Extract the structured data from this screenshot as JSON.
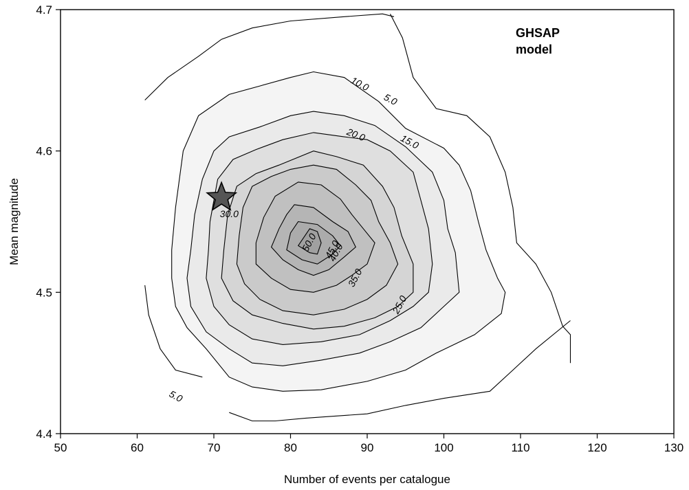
{
  "chart_data": {
    "type": "contour",
    "title": "",
    "annotation": "GHSAP\nmodel",
    "xlabel": "Number of events per catalogue",
    "ylabel": "Mean magnitude",
    "xlim": [
      50,
      130
    ],
    "ylim": [
      4.4,
      4.7
    ],
    "x_ticks": [
      50,
      60,
      70,
      80,
      90,
      100,
      110,
      120,
      130
    ],
    "y_ticks": [
      4.4,
      4.5,
      4.6,
      4.7
    ],
    "grid": false,
    "colors": {
      "fill_base": "#8a8a8a",
      "fill_light": "#f4f4f4",
      "line": "#000000",
      "marker": "#555555"
    },
    "marker": {
      "shape": "star",
      "x": 71,
      "y": 4.567
    },
    "levels": [
      {
        "value": "5.0",
        "filled": false,
        "segments": [
          [
            [
              61,
              4.636
            ],
            [
              64,
              4.652
            ],
            [
              68,
              4.667
            ],
            [
              71,
              4.679
            ],
            [
              75,
              4.687
            ],
            [
              80,
              4.692
            ],
            [
              87,
              4.695
            ],
            [
              92,
              4.697
            ],
            [
              93.5,
              4.695
            ]
          ],
          [
            [
              93,
              4.697
            ],
            [
              94.6,
              4.68
            ],
            [
              96,
              4.652
            ],
            [
              99,
              4.63
            ],
            [
              103,
              4.625
            ],
            [
              106,
              4.61
            ],
            [
              108,
              4.585
            ],
            [
              109,
              4.56
            ],
            [
              109.5,
              4.535
            ],
            [
              112,
              4.52
            ],
            [
              114,
              4.5
            ],
            [
              115.5,
              4.476
            ],
            [
              116.5,
              4.47
            ],
            [
              116.5,
              4.45
            ]
          ],
          [
            [
              116.5,
              4.48
            ],
            [
              112,
              4.46
            ],
            [
              109,
              4.445
            ],
            [
              106,
              4.43
            ],
            [
              100,
              4.425
            ],
            [
              95,
              4.42
            ],
            [
              90,
              4.414
            ],
            [
              82,
              4.411
            ],
            [
              78,
              4.409
            ],
            [
              75,
              4.409
            ],
            [
              72,
              4.415
            ]
          ],
          [
            [
              61,
              4.505
            ],
            [
              61.5,
              4.484
            ],
            [
              63,
              4.46
            ],
            [
              65,
              4.445
            ],
            [
              68.5,
              4.44
            ]
          ]
        ],
        "labels": [
          {
            "x": 93,
            "y": 4.636,
            "angle": 28
          },
          {
            "x": 65,
            "y": 4.426,
            "angle": 28
          }
        ]
      },
      {
        "value": "10.0",
        "filled": true,
        "points": [
          [
            83,
            4.656
          ],
          [
            87,
            4.652
          ],
          [
            91.5,
            4.635
          ],
          [
            95,
            4.616
          ],
          [
            100,
            4.602
          ],
          [
            102,
            4.59
          ],
          [
            103.5,
            4.572
          ],
          [
            104.5,
            4.55
          ],
          [
            105.5,
            4.53
          ],
          [
            107,
            4.51
          ],
          [
            108,
            4.5
          ],
          [
            107.5,
            4.485
          ],
          [
            104,
            4.47
          ],
          [
            99,
            4.457
          ],
          [
            95,
            4.445
          ],
          [
            90,
            4.437
          ],
          [
            84,
            4.431
          ],
          [
            79,
            4.43
          ],
          [
            75,
            4.433
          ],
          [
            72,
            4.44
          ],
          [
            69,
            4.46
          ],
          [
            66.5,
            4.475
          ],
          [
            65,
            4.49
          ],
          [
            64.5,
            4.51
          ],
          [
            64.5,
            4.53
          ],
          [
            65,
            4.56
          ],
          [
            66,
            4.6
          ],
          [
            68,
            4.625
          ],
          [
            72,
            4.64
          ],
          [
            76,
            4.646
          ],
          [
            80,
            4.652
          ]
        ],
        "labels": [
          {
            "x": 89,
            "y": 4.647,
            "angle": 28
          }
        ]
      },
      {
        "value": "15.0",
        "filled": true,
        "points": [
          [
            83,
            4.628
          ],
          [
            87,
            4.625
          ],
          [
            91,
            4.618
          ],
          [
            95,
            4.603
          ],
          [
            98.5,
            4.585
          ],
          [
            100,
            4.565
          ],
          [
            100.5,
            4.545
          ],
          [
            101.5,
            4.528
          ],
          [
            102,
            4.5
          ],
          [
            100,
            4.49
          ],
          [
            97,
            4.475
          ],
          [
            93,
            4.465
          ],
          [
            89,
            4.457
          ],
          [
            84,
            4.452
          ],
          [
            79,
            4.448
          ],
          [
            75,
            4.45
          ],
          [
            72,
            4.46
          ],
          [
            69,
            4.472
          ],
          [
            67,
            4.49
          ],
          [
            66.5,
            4.51
          ],
          [
            67,
            4.53
          ],
          [
            67.5,
            4.555
          ],
          [
            68.5,
            4.58
          ],
          [
            70,
            4.6
          ],
          [
            72,
            4.61
          ],
          [
            76,
            4.617
          ],
          [
            80,
            4.625
          ]
        ],
        "labels": [
          {
            "x": 95.5,
            "y": 4.606,
            "angle": 28
          }
        ]
      },
      {
        "value": "20.0",
        "filled": true,
        "points": [
          [
            83,
            4.613
          ],
          [
            87,
            4.61
          ],
          [
            90,
            4.608
          ],
          [
            93,
            4.6
          ],
          [
            96,
            4.585
          ],
          [
            97,
            4.565
          ],
          [
            98,
            4.545
          ],
          [
            98.5,
            4.52
          ],
          [
            98,
            4.5
          ],
          [
            96,
            4.49
          ],
          [
            93,
            4.48
          ],
          [
            89,
            4.47
          ],
          [
            84,
            4.465
          ],
          [
            79,
            4.463
          ],
          [
            75,
            4.467
          ],
          [
            72,
            4.477
          ],
          [
            70,
            4.49
          ],
          [
            69,
            4.51
          ],
          [
            69.3,
            4.53
          ],
          [
            69.5,
            4.55
          ],
          [
            70.5,
            4.58
          ],
          [
            72.5,
            4.594
          ],
          [
            75.5,
            4.601
          ],
          [
            79,
            4.608
          ]
        ],
        "labels": [
          {
            "x": 88.5,
            "y": 4.611,
            "angle": 22
          }
        ]
      },
      {
        "value": "25.0",
        "filled": true,
        "points": [
          [
            83,
            4.6
          ],
          [
            86,
            4.596
          ],
          [
            89.5,
            4.59
          ],
          [
            92,
            4.575
          ],
          [
            93.5,
            4.56
          ],
          [
            94.5,
            4.54
          ],
          [
            96,
            4.52
          ],
          [
            96,
            4.5
          ],
          [
            94,
            4.49
          ],
          [
            91,
            4.482
          ],
          [
            87,
            4.476
          ],
          [
            83,
            4.474
          ],
          [
            79,
            4.478
          ],
          [
            75,
            4.484
          ],
          [
            72.5,
            4.494
          ],
          [
            71,
            4.51
          ],
          [
            71.3,
            4.53
          ],
          [
            71.8,
            4.555
          ],
          [
            73,
            4.575
          ],
          [
            75.5,
            4.584
          ],
          [
            78.5,
            4.59
          ]
        ],
        "labels": [
          {
            "x": 94.3,
            "y": 4.491,
            "angle": -62
          }
        ]
      },
      {
        "value": "30.0",
        "filled": true,
        "points": [
          [
            83,
            4.59
          ],
          [
            86,
            4.587
          ],
          [
            88.5,
            4.576
          ],
          [
            90.5,
            4.565
          ],
          [
            91.5,
            4.55
          ],
          [
            93,
            4.535
          ],
          [
            94,
            4.52
          ],
          [
            92.5,
            4.505
          ],
          [
            90,
            4.495
          ],
          [
            87,
            4.488
          ],
          [
            83,
            4.484
          ],
          [
            79,
            4.487
          ],
          [
            76,
            4.495
          ],
          [
            74,
            4.506
          ],
          [
            73,
            4.52
          ],
          [
            73.3,
            4.54
          ],
          [
            73.8,
            4.56
          ],
          [
            75,
            4.575
          ],
          [
            77.5,
            4.582
          ],
          [
            80,
            4.587
          ]
        ],
        "labels": [
          {
            "x": 72,
            "y": 4.555,
            "angle": 0
          }
        ]
      },
      {
        "value": "35.0",
        "filled": true,
        "points": [
          [
            81,
            4.578
          ],
          [
            84,
            4.576
          ],
          [
            86.5,
            4.566
          ],
          [
            88,
            4.555
          ],
          [
            89.5,
            4.545
          ],
          [
            91,
            4.535
          ],
          [
            90,
            4.52
          ],
          [
            88,
            4.512
          ],
          [
            86,
            4.505
          ],
          [
            83,
            4.5
          ],
          [
            80,
            4.502
          ],
          [
            77.5,
            4.51
          ],
          [
            75.5,
            4.52
          ],
          [
            75.5,
            4.535
          ],
          [
            76.5,
            4.553
          ],
          [
            78,
            4.568
          ]
        ],
        "labels": [
          {
            "x": 88.5,
            "y": 4.51,
            "angle": -62
          }
        ]
      },
      {
        "value": "40.0",
        "filled": true,
        "points": [
          [
            80.5,
            4.562
          ],
          [
            83,
            4.56
          ],
          [
            85.5,
            4.55
          ],
          [
            87.5,
            4.543
          ],
          [
            88.5,
            4.532
          ],
          [
            87,
            4.525
          ],
          [
            85,
            4.516
          ],
          [
            83,
            4.512
          ],
          [
            81,
            4.516
          ],
          [
            79,
            4.523
          ],
          [
            77.5,
            4.532
          ],
          [
            78.5,
            4.545
          ],
          [
            79.5,
            4.555
          ]
        ],
        "labels": [
          {
            "x": 86,
            "y": 4.528,
            "angle": -62
          }
        ]
      },
      {
        "value": "45.0",
        "filled": true,
        "points": [
          [
            81,
            4.55
          ],
          [
            83.5,
            4.548
          ],
          [
            85.5,
            4.54
          ],
          [
            86.5,
            4.533
          ],
          [
            85.5,
            4.527
          ],
          [
            83.5,
            4.52
          ],
          [
            81.5,
            4.523
          ],
          [
            79.5,
            4.53
          ],
          [
            80,
            4.542
          ]
        ],
        "labels": [
          {
            "x": 85.5,
            "y": 4.53,
            "angle": -62
          }
        ]
      },
      {
        "value": "50.0",
        "filled": true,
        "points": [
          [
            82.5,
            4.545
          ],
          [
            83.5,
            4.543
          ],
          [
            84,
            4.535
          ],
          [
            83.5,
            4.527
          ],
          [
            82.5,
            4.528
          ],
          [
            81,
            4.533
          ]
        ],
        "labels": [
          {
            "x": 82.5,
            "y": 4.535,
            "angle": -62
          }
        ]
      }
    ]
  }
}
